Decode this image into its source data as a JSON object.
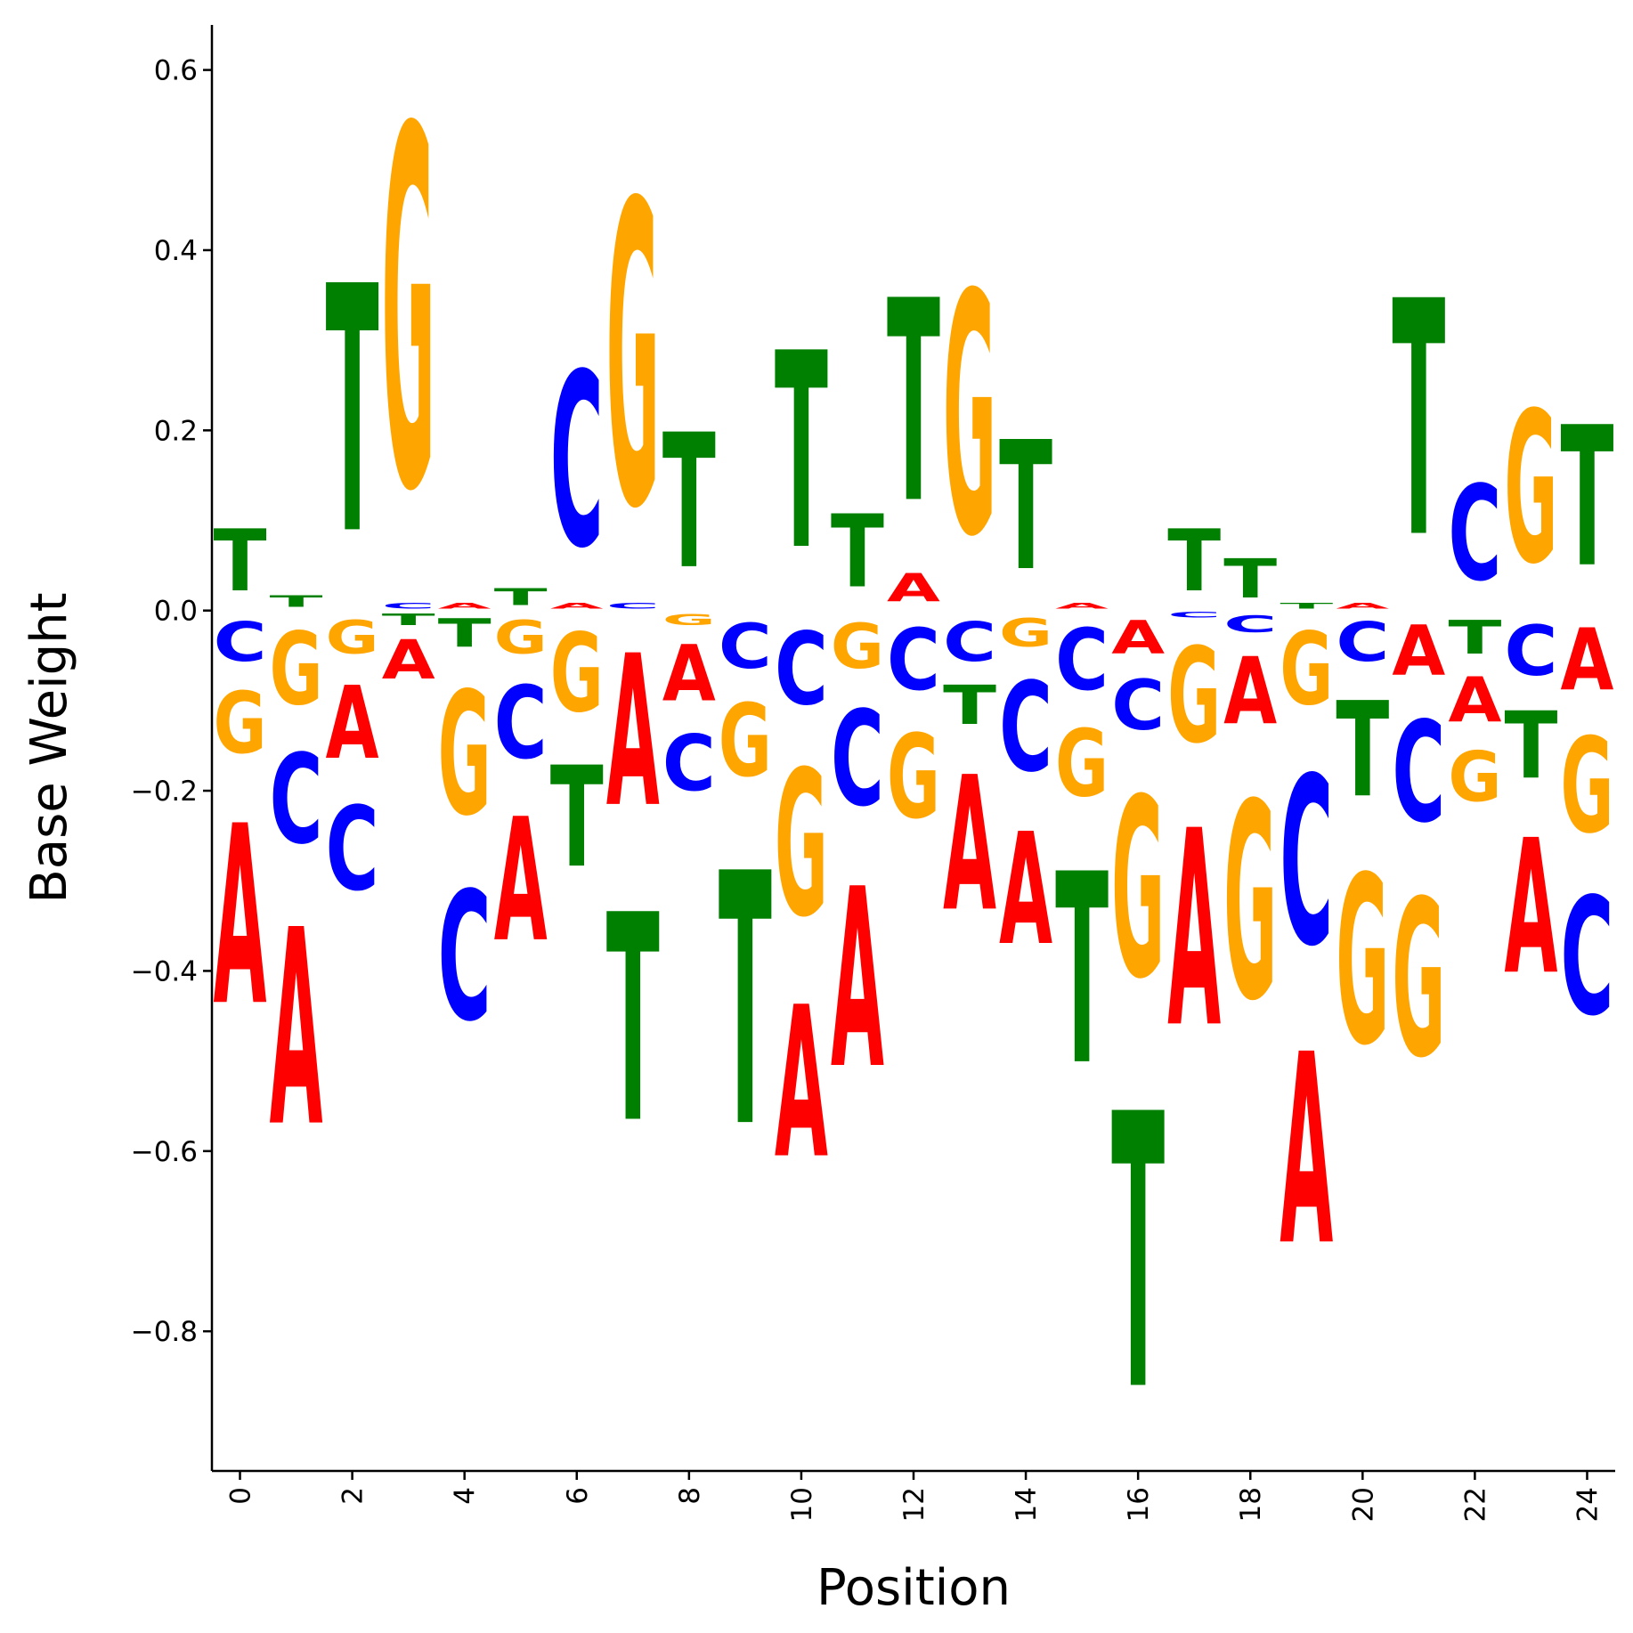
{
  "chart_data": {
    "type": "sequence-logo",
    "xlabel": "Position",
    "ylabel": "Base Weight",
    "ylim": [
      -0.955,
      0.65
    ],
    "xlim": [
      -0.5,
      24.5
    ],
    "yticks": [
      -0.8,
      -0.6,
      -0.4,
      -0.2,
      0.0,
      0.2,
      0.4,
      0.6
    ],
    "ytick_labels": [
      "−0.8",
      "−0.6",
      "−0.4",
      "−0.2",
      "0.0",
      "0.2",
      "0.4",
      "0.6"
    ],
    "xticks": [
      0,
      2,
      4,
      6,
      8,
      10,
      12,
      14,
      16,
      18,
      20,
      22,
      24
    ],
    "xtick_labels": [
      "0",
      "2",
      "4",
      "6",
      "8",
      "10",
      "12",
      "14",
      "16",
      "18",
      "20",
      "22",
      "24"
    ],
    "colors": {
      "A": "#ff0000",
      "C": "#0000ff",
      "G": "#ffa500",
      "T": "#008000"
    },
    "positions": [
      {
        "pos": 0,
        "weights": {
          "A": -0.32,
          "C": -0.07,
          "G": -0.11,
          "T": 0.11
        }
      },
      {
        "pos": 1,
        "weights": {
          "A": -0.35,
          "C": -0.16,
          "G": -0.13,
          "T": 0.02
        }
      },
      {
        "pos": 2,
        "weights": {
          "A": -0.13,
          "C": -0.15,
          "G": -0.06,
          "T": 0.44
        }
      },
      {
        "pos": 3,
        "weights": {
          "A": -0.07,
          "C": 0.01,
          "G": 0.64,
          "T": -0.02
        }
      },
      {
        "pos": 4,
        "weights": {
          "A": 0.01,
          "C": -0.23,
          "G": -0.22,
          "T": -0.05
        }
      },
      {
        "pos": 5,
        "weights": {
          "A": -0.22,
          "C": -0.13,
          "G": -0.06,
          "T": 0.03
        }
      },
      {
        "pos": 6,
        "weights": {
          "A": 0.01,
          "C": 0.31,
          "G": -0.14,
          "T": -0.18
        }
      },
      {
        "pos": 7,
        "weights": {
          "A": -0.27,
          "C": 0.01,
          "G": 0.54,
          "T": -0.37
        }
      },
      {
        "pos": 8,
        "weights": {
          "A": -0.1,
          "C": -0.1,
          "G": -0.02,
          "T": 0.24
        }
      },
      {
        "pos": 9,
        "weights": {
          "A": 0.0,
          "C": -0.08,
          "G": -0.13,
          "T": -0.45
        }
      },
      {
        "pos": 10,
        "weights": {
          "A": -0.27,
          "C": -0.13,
          "G": -0.26,
          "T": 0.35
        }
      },
      {
        "pos": 11,
        "weights": {
          "A": -0.32,
          "C": -0.17,
          "G": -0.08,
          "T": 0.13
        }
      },
      {
        "pos": 12,
        "weights": {
          "A": 0.05,
          "C": -0.11,
          "G": -0.15,
          "T": 0.36
        }
      },
      {
        "pos": 13,
        "weights": {
          "A": -0.24,
          "C": -0.07,
          "G": 0.43,
          "T": -0.07
        }
      },
      {
        "pos": 14,
        "weights": {
          "A": -0.2,
          "C": -0.16,
          "G": -0.05,
          "T": 0.23
        }
      },
      {
        "pos": 15,
        "weights": {
          "A": 0.01,
          "C": -0.11,
          "G": -0.12,
          "T": -0.34
        }
      },
      {
        "pos": 16,
        "weights": {
          "A": -0.06,
          "C": -0.09,
          "G": -0.32,
          "T": -0.49
        }
      },
      {
        "pos": 17,
        "weights": {
          "A": -0.35,
          "C": -0.01,
          "G": -0.17,
          "T": 0.11
        }
      },
      {
        "pos": 18,
        "weights": {
          "A": -0.12,
          "C": -0.03,
          "G": -0.35,
          "T": 0.07
        }
      },
      {
        "pos": 19,
        "weights": {
          "A": -0.34,
          "C": -0.3,
          "G": -0.13,
          "T": 0.01
        }
      },
      {
        "pos": 20,
        "weights": {
          "A": 0.01,
          "C": -0.07,
          "G": -0.3,
          "T": -0.17
        }
      },
      {
        "pos": 21,
        "weights": {
          "A": -0.09,
          "C": -0.18,
          "G": -0.28,
          "T": 0.42
        }
      },
      {
        "pos": 22,
        "weights": {
          "A": -0.08,
          "C": 0.17,
          "G": -0.09,
          "T": -0.06
        }
      },
      {
        "pos": 23,
        "weights": {
          "A": -0.24,
          "C": -0.09,
          "G": 0.27,
          "T": -0.12
        }
      },
      {
        "pos": 24,
        "weights": {
          "A": -0.11,
          "C": -0.21,
          "G": -0.17,
          "T": 0.25
        }
      }
    ]
  }
}
